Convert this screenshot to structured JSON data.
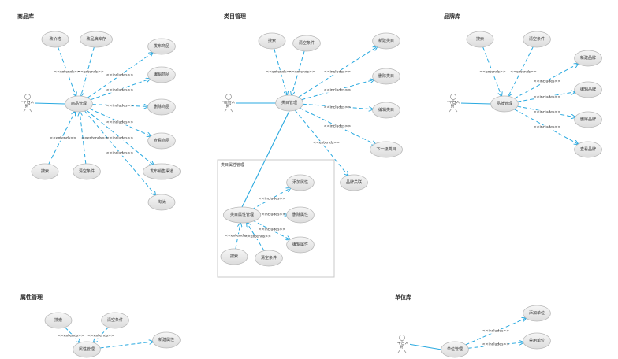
{
  "colors": {
    "relation": "#29a9e0",
    "usecase_stroke": "#b8b8b8",
    "usecase_fill": "#e8e8e8"
  },
  "panels": [
    {
      "title": "商品库",
      "actor": "平台人员",
      "nodes": [
        "商品管理",
        "改价格",
        "改品牌库存",
        "发布商品",
        "编辑商品",
        "删除商品",
        "查看商品",
        "发布销售渠道",
        "淘汰",
        "搜索",
        "清空条件"
      ],
      "edges": [
        {
          "from": 1,
          "to": 0,
          "label": "<<extends>>"
        },
        {
          "from": 2,
          "to": 0,
          "label": "<<extends>>"
        },
        {
          "from": 0,
          "to": 3,
          "label": "<<includes>>"
        },
        {
          "from": 0,
          "to": 4,
          "label": "<<includes>>"
        },
        {
          "from": 0,
          "to": 5,
          "label": "<<includes>>"
        },
        {
          "from": 0,
          "to": 6,
          "label": "<<includes>>"
        },
        {
          "from": 0,
          "to": 7,
          "label": "<<includes>>"
        },
        {
          "from": 0,
          "to": 8,
          "label": "<<includes>>"
        },
        {
          "from": 9,
          "to": 0,
          "label": "<<extends>>"
        },
        {
          "from": 10,
          "to": 0,
          "label": "<<extends>>"
        }
      ]
    },
    {
      "title": "类目管理",
      "actor": "运营人员",
      "nodes": [
        "类目管理",
        "搜索",
        "清空条件",
        "新建类目",
        "删除类目",
        "编辑类目",
        "下一级类目",
        "品牌关联"
      ],
      "edges": [
        {
          "from": 1,
          "to": 0,
          "label": "<<extends>>"
        },
        {
          "from": 2,
          "to": 0,
          "label": "<<extends>>"
        },
        {
          "from": 0,
          "to": 3,
          "label": "<<includes>>"
        },
        {
          "from": 0,
          "to": 4,
          "label": "<<includes>>"
        },
        {
          "from": 0,
          "to": 5,
          "label": "<<includes>>"
        },
        {
          "from": 0,
          "to": 6,
          "label": "<<includes>>"
        },
        {
          "from": 0,
          "to": 7,
          "label": "<<extends>>"
        }
      ]
    },
    {
      "title": "",
      "system": "类目属性管理",
      "nodes": [
        "类目属性管理",
        "添加属性",
        "删除属性",
        "编辑属性",
        "搜索",
        "清空条件"
      ],
      "edges": [
        {
          "from": 0,
          "to": 1,
          "label": "<<includes>>"
        },
        {
          "from": 0,
          "to": 2,
          "label": "<<includes>>"
        },
        {
          "from": 0,
          "to": 3,
          "label": "<<includes>>"
        },
        {
          "from": 4,
          "to": 0,
          "label": "<<extends>>"
        },
        {
          "from": 5,
          "to": 0,
          "label": "<<extends>>"
        }
      ]
    },
    {
      "title": "品牌库",
      "actor": "平台人员",
      "nodes": [
        "品牌管理",
        "搜索",
        "清空条件",
        "新建品牌",
        "编辑品牌",
        "删除品牌",
        "查看品牌"
      ],
      "edges": [
        {
          "from": 1,
          "to": 0,
          "label": "<<extends>>"
        },
        {
          "from": 2,
          "to": 0,
          "label": "<<extends>>"
        },
        {
          "from": 0,
          "to": 3,
          "label": "<<includes>>"
        },
        {
          "from": 0,
          "to": 4,
          "label": "<<includes>>"
        },
        {
          "from": 0,
          "to": 5,
          "label": "<<includes>>"
        },
        {
          "from": 0,
          "to": 6,
          "label": "<<includes>>"
        }
      ]
    },
    {
      "title": "属性管理",
      "nodes": [
        "属性管理",
        "搜索",
        "清空条件",
        "新建属性"
      ],
      "edges": [
        {
          "from": 1,
          "to": 0,
          "label": "<<extends>>"
        },
        {
          "from": 2,
          "to": 0,
          "label": "<<extends>>"
        },
        {
          "from": 0,
          "to": 3,
          "label": ""
        }
      ]
    },
    {
      "title": "单位库",
      "actor": "平台人员",
      "nodes": [
        "单位管理",
        "添加单位",
        "禁用单位"
      ],
      "edges": [
        {
          "from": 0,
          "to": 1,
          "label": "<<includes>>"
        },
        {
          "from": 0,
          "to": 2,
          "label": "<<includes>>"
        }
      ]
    }
  ]
}
